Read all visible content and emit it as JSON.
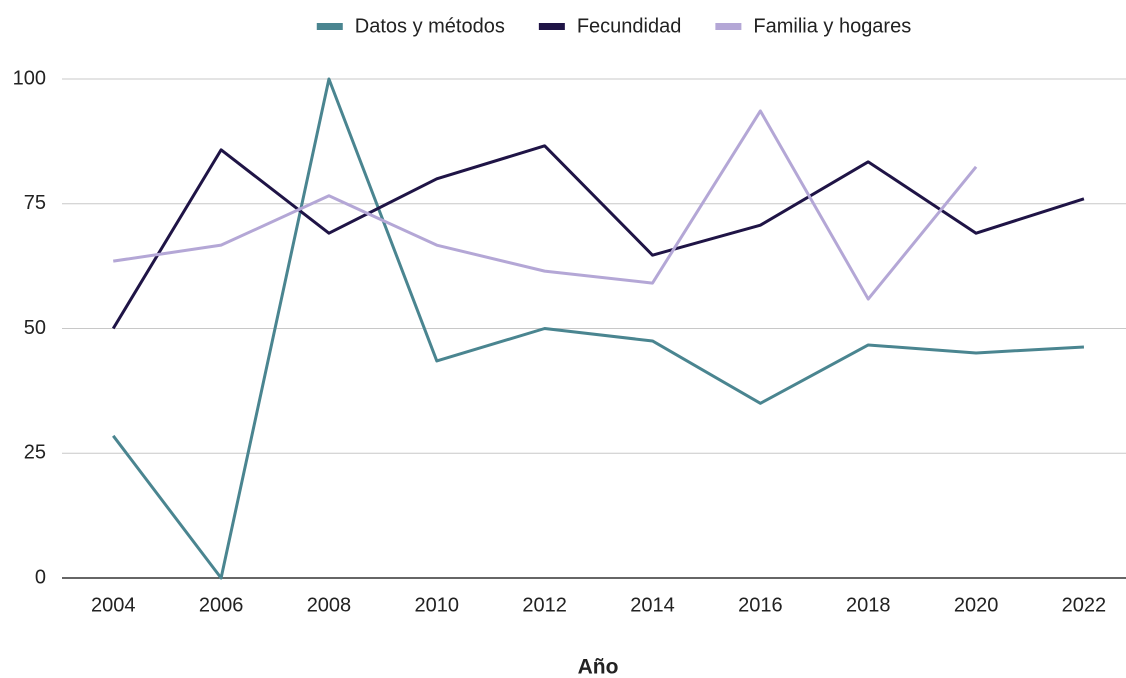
{
  "chart_data": {
    "type": "line",
    "x_label": "Año",
    "x": [
      2004,
      2006,
      2008,
      2010,
      2012,
      2014,
      2016,
      2018,
      2020,
      2022
    ],
    "xlim": [
      2003.05,
      2022.78
    ],
    "xticks": [
      2004,
      2006,
      2008,
      2010,
      2012,
      2014,
      2016,
      2018,
      2020,
      2022
    ],
    "ylim": [
      0,
      100
    ],
    "yticks": [
      0,
      25,
      50,
      75,
      100
    ],
    "grid": true,
    "legend": "top",
    "series": [
      {
        "name": "Datos y métodos",
        "color": "#4a8590",
        "values": [
          28.5,
          0,
          100,
          43.5,
          50,
          47.5,
          35,
          46.7,
          45.1,
          46.3
        ]
      },
      {
        "name": "Fecundidad",
        "color": "#1f1446",
        "values": [
          50,
          85.8,
          69.1,
          80,
          86.6,
          64.7,
          70.7,
          83.4,
          69.1,
          76
        ]
      },
      {
        "name": "Familia y hogares",
        "color": "#b4a7d6",
        "values": [
          63.5,
          66.7,
          76.6,
          66.7,
          61.5,
          59.1,
          93.6,
          55.9,
          82.4,
          null
        ]
      }
    ]
  }
}
